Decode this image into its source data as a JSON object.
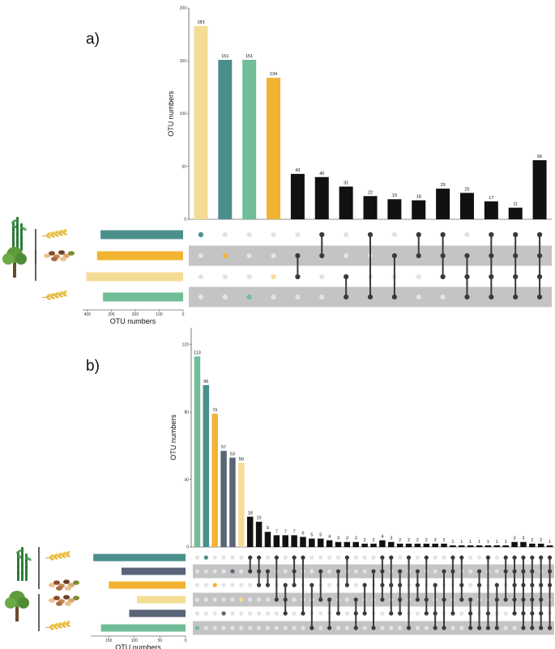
{
  "colors": {
    "pale_yellow": "#f5dc96",
    "teal": "#4b8f8c",
    "green": "#70bd98",
    "orange": "#f2b332",
    "slate": "#5a6577",
    "black": "#111111",
    "stripe": "#c4c4c4",
    "dot_off": "#e3e3e3",
    "dot_on": "#3a3a3a"
  },
  "panels": [
    {
      "label": "a)",
      "icons": [
        "bamboo-icon",
        "grain-icon",
        "seeds-icon",
        "tree-icon",
        "grain-icon"
      ],
      "chart_data": {
        "type": "bar",
        "title": "",
        "xlabel": "",
        "ylabel": "OTU numbers",
        "ylim": [
          0,
          200
        ],
        "yticks": [
          "0",
          "50",
          "100",
          "150",
          "200"
        ],
        "values": [
          183,
          151,
          151,
          134,
          43,
          40,
          31,
          22,
          19,
          18,
          29,
          25,
          17,
          11,
          56
        ],
        "labels": [
          "183",
          "151",
          "151",
          "134",
          "43",
          "40",
          "31",
          "22",
          "19",
          "18",
          "29",
          "25",
          "17",
          "11",
          "56"
        ],
        "bar_colors": [
          "#f5dc96",
          "#4b8f8c",
          "#70bd98",
          "#f2b332",
          "#111111",
          "#111111",
          "#111111",
          "#111111",
          "#111111",
          "#111111",
          "#111111",
          "#111111",
          "#111111",
          "#111111",
          "#111111"
        ],
        "sets": [
          {
            "color": "#4b8f8c",
            "size": 345
          },
          {
            "color": "#f2b332",
            "size": 360
          },
          {
            "color": "#f5dc96",
            "size": 405
          },
          {
            "color": "#70bd98",
            "size": 335
          }
        ],
        "set_size_label": "OTU numbers",
        "set_size_ticks": [
          "400",
          "300",
          "200",
          "100",
          "0"
        ],
        "set_size_max": 420,
        "matrix": [
          [
            0
          ],
          [
            1
          ],
          [
            3
          ],
          [
            2
          ],
          [
            1,
            2
          ],
          [
            0,
            1
          ],
          [
            2,
            3
          ],
          [
            0,
            3
          ],
          [
            1,
            3
          ],
          [
            0,
            1
          ],
          [
            0,
            1,
            2
          ],
          [
            1,
            2,
            3
          ],
          [
            0,
            1,
            2,
            3
          ],
          [
            0,
            1,
            2,
            3
          ],
          [
            0,
            1,
            2,
            3
          ]
        ],
        "highlight_dots": [
          {
            "color": "#4b8f8c"
          },
          {
            "color": "#f2b332"
          },
          {
            "color": "#f5dc96"
          },
          {
            "color": "#70bd98"
          }
        ]
      }
    },
    {
      "label": "b)",
      "icons": [
        "bamboo-icon",
        "grain-icon",
        "seeds-icon",
        "seeds-icon",
        "tree-icon",
        "grain-icon"
      ],
      "chart_data": {
        "type": "bar",
        "title": "",
        "xlabel": "",
        "ylabel": "OTU numbers",
        "ylim": [
          0,
          130
        ],
        "yticks": [
          "0",
          "40",
          "80",
          "120"
        ],
        "values": [
          113,
          96,
          79,
          57,
          53,
          50,
          18,
          15,
          9,
          7,
          7,
          7,
          6,
          5,
          5,
          4,
          3,
          3,
          3,
          2,
          2,
          4,
          3,
          2,
          2,
          2,
          2,
          2,
          2,
          1,
          1,
          1,
          1,
          1,
          1,
          1,
          3,
          3,
          2,
          2,
          1
        ],
        "labels": [
          "113",
          "96",
          "79",
          "57",
          "53",
          "50",
          "18",
          "15",
          "9",
          "7",
          "7",
          "7",
          "6",
          "5",
          "5",
          "4",
          "3",
          "3",
          "3",
          "2",
          "2",
          "4",
          "3",
          "2",
          "2",
          "2",
          "2",
          "2",
          "2",
          "1",
          "1",
          "1",
          "1",
          "1",
          "1",
          "1",
          "3",
          "3",
          "2",
          "2",
          "1"
        ],
        "bar_colors": [
          "#70bd98",
          "#4b8f8c",
          "#f2b332",
          "#5a6577",
          "#5a6577",
          "#f5dc96",
          "#111111",
          "#111111",
          "#111111",
          "#111111",
          "#111111",
          "#111111",
          "#111111",
          "#111111",
          "#111111",
          "#111111",
          "#111111",
          "#111111",
          "#111111",
          "#111111",
          "#111111",
          "#111111",
          "#111111",
          "#111111",
          "#111111",
          "#111111",
          "#111111",
          "#111111",
          "#111111",
          "#111111",
          "#111111",
          "#111111",
          "#111111",
          "#111111",
          "#111111",
          "#111111",
          "#111111",
          "#111111",
          "#111111",
          "#111111",
          "#111111"
        ],
        "sets": [
          {
            "color": "#4b8f8c",
            "size": 180
          },
          {
            "color": "#5a6577",
            "size": 125
          },
          {
            "color": "#f2b332",
            "size": 150
          },
          {
            "color": "#f5dc96",
            "size": 95
          },
          {
            "color": "#5a6577",
            "size": 110
          },
          {
            "color": "#70bd98",
            "size": 165
          }
        ],
        "set_size_label": "OTU numbers",
        "set_size_ticks": [
          "150",
          "100",
          "50",
          "0"
        ],
        "set_size_max": 185,
        "matrix": [
          [
            5
          ],
          [
            0
          ],
          [
            2
          ],
          [
            4
          ],
          [
            1
          ],
          [
            3
          ],
          [
            0,
            1
          ],
          [
            0,
            1,
            2
          ],
          [
            1,
            2
          ],
          [
            0,
            3
          ],
          [
            2,
            3,
            4
          ],
          [
            0,
            1,
            2
          ],
          [
            0,
            4
          ],
          [
            2,
            5
          ],
          [
            1,
            3
          ],
          [
            3,
            5
          ],
          [
            1,
            4
          ],
          [
            0,
            2
          ],
          [
            3,
            4,
            5
          ],
          [
            2,
            4
          ],
          [
            1,
            5
          ],
          [
            0,
            1,
            2,
            3
          ],
          [
            0,
            2,
            4
          ],
          [
            1,
            2,
            3,
            4
          ],
          [
            0,
            5
          ],
          [
            1,
            2,
            3
          ],
          [
            0,
            3,
            4
          ],
          [
            2,
            4,
            5
          ],
          [
            1,
            3,
            5
          ],
          [
            0,
            1,
            4
          ],
          [
            0,
            2,
            3
          ],
          [
            3,
            4,
            5
          ],
          [
            1,
            2,
            5
          ],
          [
            0,
            4,
            5
          ],
          [
            2,
            3,
            5
          ],
          [
            0,
            1,
            3
          ],
          [
            0,
            1,
            2,
            3,
            4
          ],
          [
            0,
            1,
            2,
            3,
            4,
            5
          ],
          [
            0,
            1,
            2,
            3,
            4,
            5
          ],
          [
            0,
            2,
            3,
            4,
            5
          ],
          [
            0,
            1,
            2,
            5
          ]
        ],
        "highlight_dots": [
          {
            "color": "#4b8f8c"
          },
          {
            "color": "#5a6577"
          },
          {
            "color": "#f2b332"
          },
          {
            "color": "#f5dc96"
          },
          {
            "color": "#5a6577"
          },
          {
            "color": "#70bd98"
          }
        ]
      }
    }
  ]
}
